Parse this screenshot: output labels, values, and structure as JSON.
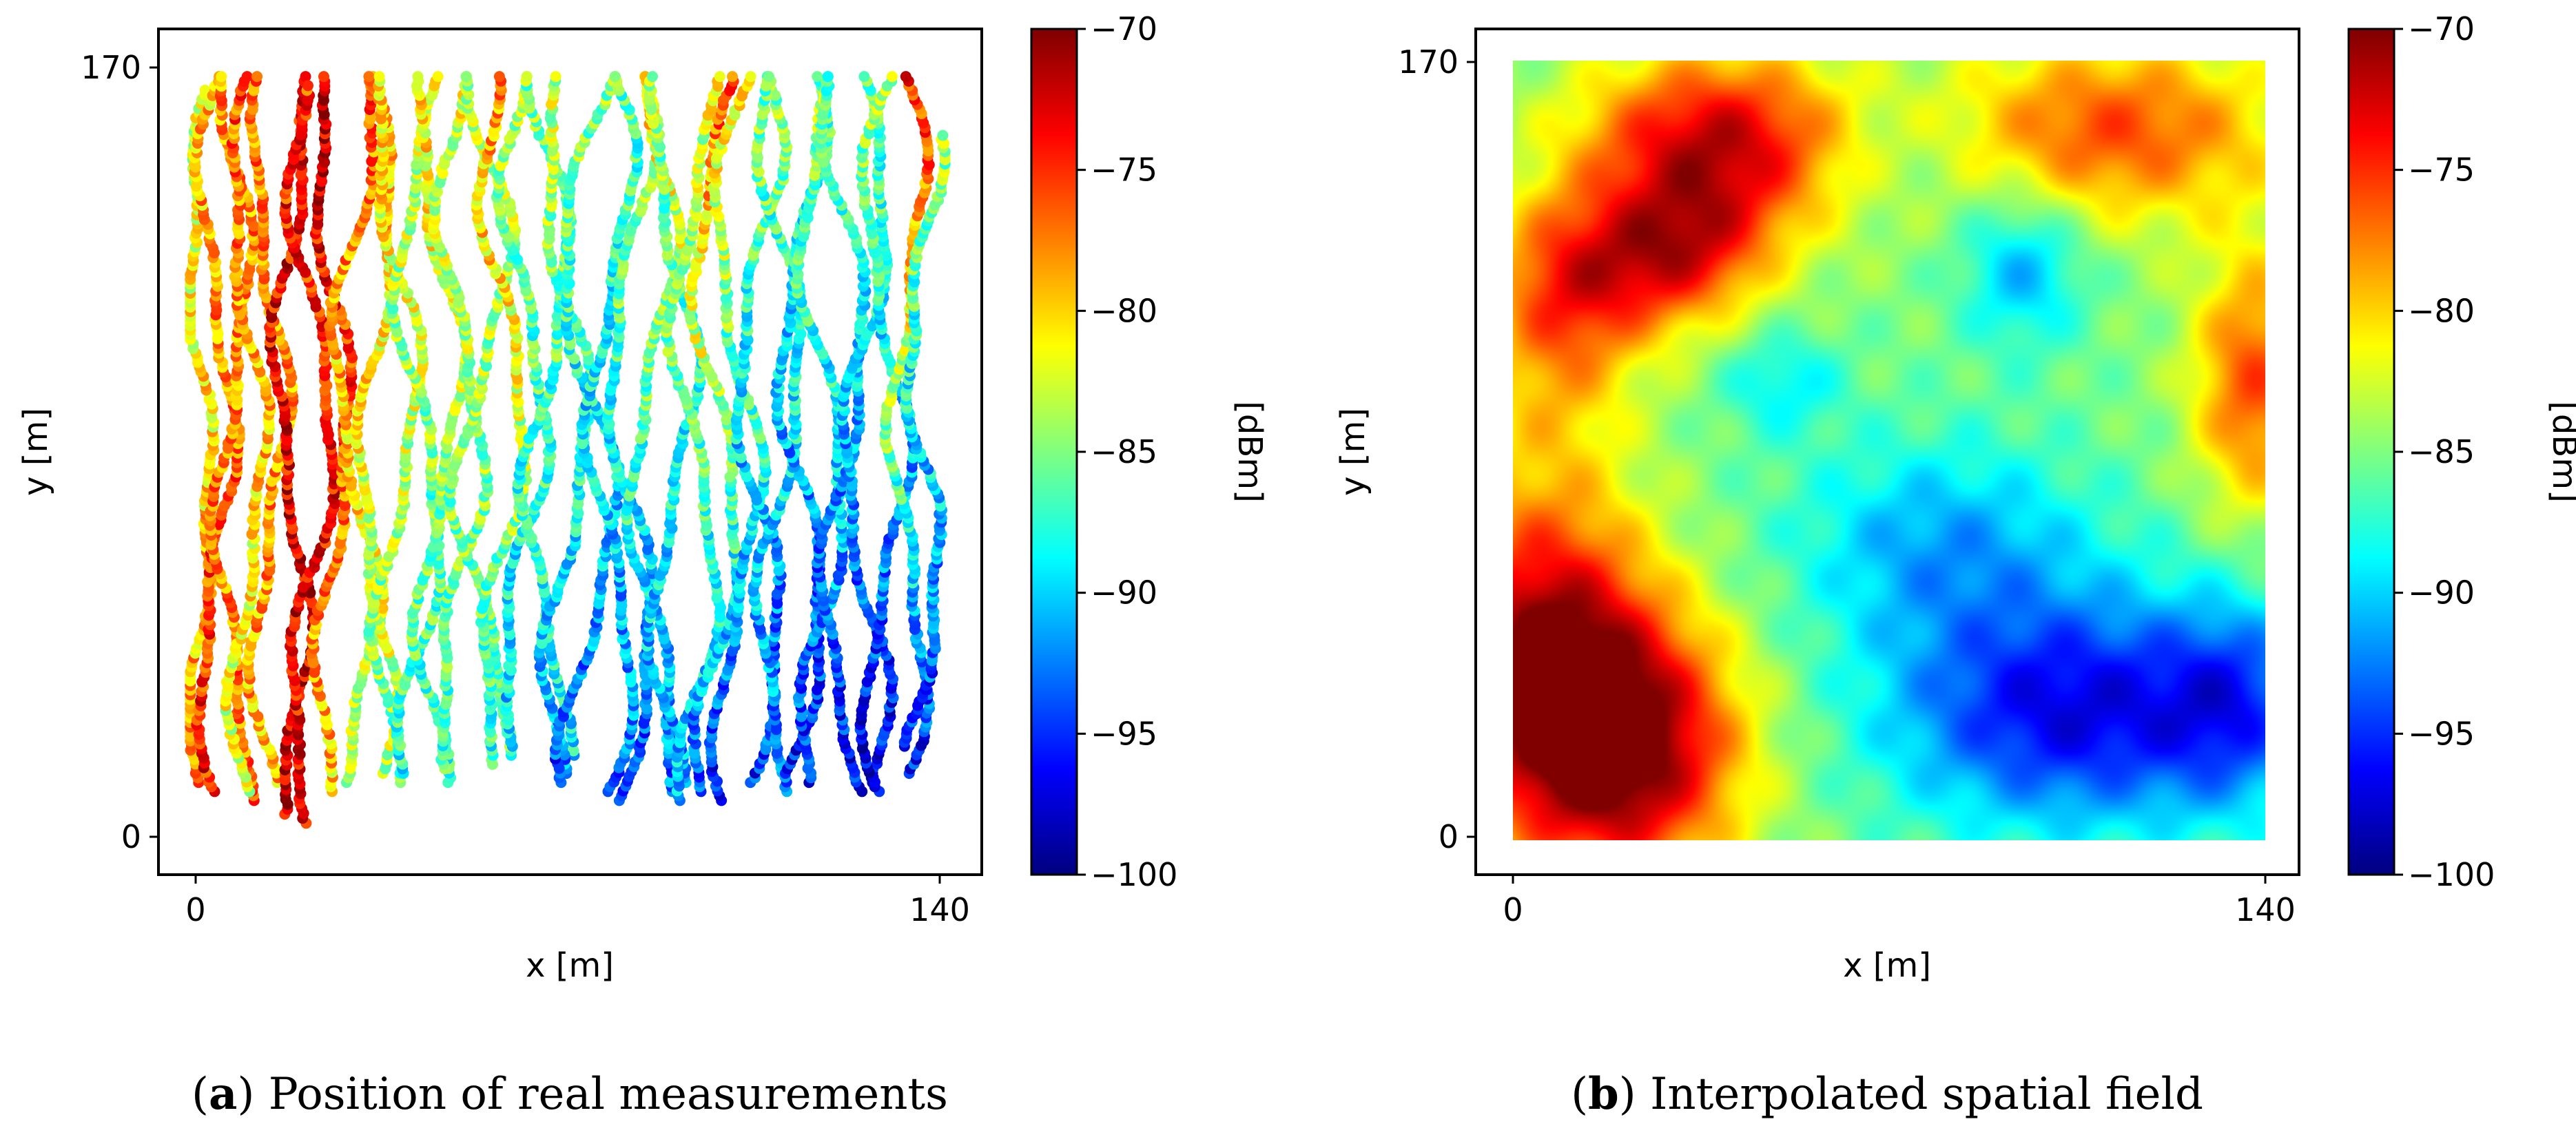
{
  "figure": {
    "panels": [
      {
        "id": "a",
        "letter": "a",
        "caption": "Position of real measurements",
        "xlabel": "x [m]",
        "ylabel": "y [m]",
        "colorbar_label": "[dBm]"
      },
      {
        "id": "b",
        "letter": "b",
        "caption": "Interpolated spatial field",
        "xlabel": "x [m]",
        "ylabel": "y [m]",
        "colorbar_label": "[dBm]"
      }
    ]
  },
  "chart_data": [
    {
      "type": "scatter",
      "panel": "a",
      "xlabel": "x [m]",
      "ylabel": "y [m]",
      "xlim": [
        0,
        140
      ],
      "ylim": [
        0,
        170
      ],
      "x_ticks": [
        0,
        140
      ],
      "y_ticks": [
        0,
        170
      ],
      "colorbar": {
        "label": "[dBm]",
        "colormap": "jet",
        "range": [
          -100,
          -70
        ],
        "ticks": [
          -100,
          -95,
          -90,
          -85,
          -80,
          -75,
          -70
        ]
      },
      "tracks": [
        {
          "x0": 1,
          "amp": 2,
          "y_low": 12,
          "y_high": 165,
          "rssi_bottom": -78,
          "rssi_top": -83
        },
        {
          "x0": 4,
          "amp": 3,
          "y_low": 10,
          "y_high": 168,
          "rssi_bottom": -74,
          "rssi_top": -80
        },
        {
          "x0": 7,
          "amp": 3,
          "y_low": 8,
          "y_high": 168,
          "rssi_bottom": -77,
          "rssi_top": -78
        },
        {
          "x0": 10,
          "amp": 3,
          "y_low": 10,
          "y_high": 168,
          "rssi_bottom": -83,
          "rssi_top": -76
        },
        {
          "x0": 14,
          "amp": 3,
          "y_low": 12,
          "y_high": 168,
          "rssi_bottom": -79,
          "rssi_top": -77
        },
        {
          "x0": 18,
          "amp": 3,
          "y_low": 5,
          "y_high": 168,
          "rssi_bottom": -72,
          "rssi_top": -74
        },
        {
          "x0": 22,
          "amp": 4,
          "y_low": 3,
          "y_high": 166,
          "rssi_bottom": -73,
          "rssi_top": -75
        },
        {
          "x0": 26,
          "amp": 3,
          "y_low": 10,
          "y_high": 168,
          "rssi_bottom": -80,
          "rssi_top": -72
        },
        {
          "x0": 30,
          "amp": 4,
          "y_low": 12,
          "y_high": 168,
          "rssi_bottom": -84,
          "rssi_top": -76
        },
        {
          "x0": 34,
          "amp": 3,
          "y_low": 14,
          "y_high": 168,
          "rssi_bottom": -84,
          "rssi_top": -79
        },
        {
          "x0": 38,
          "amp": 4,
          "y_low": 12,
          "y_high": 168,
          "rssi_bottom": -86,
          "rssi_top": -80
        },
        {
          "x0": 42,
          "amp": 4,
          "y_low": 14,
          "y_high": 168,
          "rssi_bottom": -88,
          "rssi_top": -82
        },
        {
          "x0": 46,
          "amp": 4,
          "y_low": 12,
          "y_high": 168,
          "rssi_bottom": -88,
          "rssi_top": -80
        },
        {
          "x0": 50,
          "amp": 4,
          "y_low": 15,
          "y_high": 168,
          "rssi_bottom": -87,
          "rssi_top": -82
        },
        {
          "x0": 54,
          "amp": 5,
          "y_low": 18,
          "y_high": 168,
          "rssi_bottom": -86,
          "rssi_top": -83
        },
        {
          "x0": 58,
          "amp": 4,
          "y_low": 16,
          "y_high": 168,
          "rssi_bottom": -88,
          "rssi_top": -78
        },
        {
          "x0": 62,
          "amp": 4,
          "y_low": 20,
          "y_high": 168,
          "rssi_bottom": -90,
          "rssi_top": -84
        },
        {
          "x0": 66,
          "amp": 4,
          "y_low": 18,
          "y_high": 168,
          "rssi_bottom": -89,
          "rssi_top": -85
        },
        {
          "x0": 70,
          "amp": 4,
          "y_low": 14,
          "y_high": 168,
          "rssi_bottom": -92,
          "rssi_top": -83
        },
        {
          "x0": 74,
          "amp": 5,
          "y_low": 12,
          "y_high": 168,
          "rssi_bottom": -94,
          "rssi_top": -84
        },
        {
          "x0": 78,
          "amp": 4,
          "y_low": 10,
          "y_high": 168,
          "rssi_bottom": -93,
          "rssi_top": -86
        },
        {
          "x0": 82,
          "amp": 4,
          "y_low": 8,
          "y_high": 168,
          "rssi_bottom": -95,
          "rssi_top": -82
        },
        {
          "x0": 86,
          "amp": 4,
          "y_low": 10,
          "y_high": 168,
          "rssi_bottom": -93,
          "rssi_top": -80
        },
        {
          "x0": 90,
          "amp": 4,
          "y_low": 12,
          "y_high": 168,
          "rssi_bottom": -92,
          "rssi_top": -84
        },
        {
          "x0": 94,
          "amp": 4,
          "y_low": 8,
          "y_high": 168,
          "rssi_bottom": -91,
          "rssi_top": -82
        },
        {
          "x0": 98,
          "amp": 4,
          "y_low": 10,
          "y_high": 168,
          "rssi_bottom": -94,
          "rssi_top": -76
        },
        {
          "x0": 102,
          "amp": 4,
          "y_low": 8,
          "y_high": 168,
          "rssi_bottom": -96,
          "rssi_top": -80
        },
        {
          "x0": 106,
          "amp": 4,
          "y_low": 12,
          "y_high": 168,
          "rssi_bottom": -95,
          "rssi_top": -84
        },
        {
          "x0": 110,
          "amp": 4,
          "y_low": 10,
          "y_high": 168,
          "rssi_bottom": -93,
          "rssi_top": -85
        },
        {
          "x0": 114,
          "amp": 4,
          "y_low": 14,
          "y_high": 168,
          "rssi_bottom": -96,
          "rssi_top": -86
        },
        {
          "x0": 118,
          "amp": 4,
          "y_low": 12,
          "y_high": 168,
          "rssi_bottom": -95,
          "rssi_top": -84
        },
        {
          "x0": 122,
          "amp": 4,
          "y_low": 10,
          "y_high": 168,
          "rssi_bottom": -96,
          "rssi_top": -86
        },
        {
          "x0": 126,
          "amp": 4,
          "y_low": 12,
          "y_high": 168,
          "rssi_bottom": -97,
          "rssi_top": -85
        },
        {
          "x0": 130,
          "amp": 4,
          "y_low": 10,
          "y_high": 168,
          "rssi_bottom": -97,
          "rssi_top": -84
        },
        {
          "x0": 134,
          "amp": 3,
          "y_low": 14,
          "y_high": 168,
          "rssi_bottom": -96,
          "rssi_top": -74
        },
        {
          "x0": 137,
          "amp": 3,
          "y_low": 20,
          "y_high": 155,
          "rssi_bottom": -95,
          "rssi_top": -84
        }
      ]
    },
    {
      "type": "heatmap",
      "panel": "b",
      "xlabel": "x [m]",
      "ylabel": "y [m]",
      "xlim": [
        0,
        140
      ],
      "ylim": [
        0,
        170
      ],
      "x_ticks": [
        0,
        140
      ],
      "y_ticks": [
        0,
        170
      ],
      "colorbar": {
        "label": "[dBm]",
        "colormap": "jet",
        "range": [
          -100,
          -70
        ],
        "ticks": [
          -100,
          -95,
          -90,
          -85,
          -80,
          -75,
          -70
        ]
      },
      "field_base_dBm": -85,
      "field_components": [
        {
          "x": 38,
          "y": 152,
          "sx": 18,
          "sy": 14,
          "a": 13
        },
        {
          "x": 20,
          "y": 125,
          "sx": 14,
          "sy": 12,
          "a": 9
        },
        {
          "x": 5,
          "y": 40,
          "sx": 14,
          "sy": 26,
          "a": 14
        },
        {
          "x": 22,
          "y": 20,
          "sx": 15,
          "sy": 20,
          "a": 14
        },
        {
          "x": 112,
          "y": 155,
          "sx": 22,
          "sy": 14,
          "a": 9
        },
        {
          "x": 138,
          "y": 100,
          "sx": 8,
          "sy": 20,
          "a": 9
        },
        {
          "x": 8,
          "y": 110,
          "sx": 10,
          "sy": 18,
          "a": 6
        },
        {
          "x": 35,
          "y": 130,
          "sx": 10,
          "sy": 10,
          "a": 5
        },
        {
          "x": 105,
          "y": 28,
          "sx": 25,
          "sy": 18,
          "a": -12
        },
        {
          "x": 80,
          "y": 65,
          "sx": 20,
          "sy": 16,
          "a": -6
        },
        {
          "x": 95,
          "y": 125,
          "sx": 8,
          "sy": 12,
          "a": -6
        },
        {
          "x": 50,
          "y": 100,
          "sx": 8,
          "sy": 8,
          "a": -4
        },
        {
          "x": 135,
          "y": 30,
          "sx": 10,
          "sy": 16,
          "a": -6
        },
        {
          "x": 70,
          "y": 150,
          "sx": 12,
          "sy": 10,
          "a": -2
        }
      ]
    }
  ]
}
